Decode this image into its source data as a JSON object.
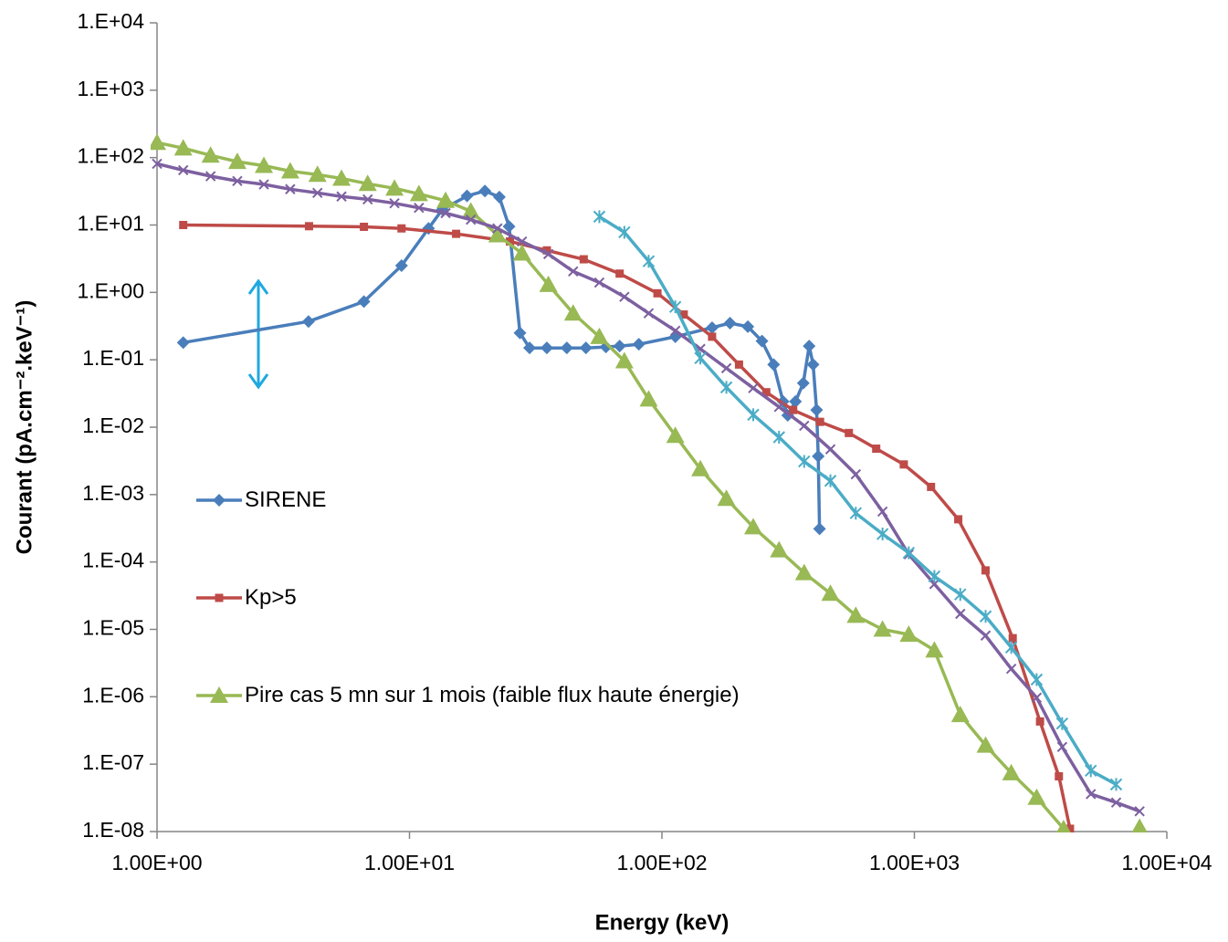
{
  "chart_data": {
    "type": "line",
    "x_label": "Energy (keV)",
    "y_label": "Courant (pA.cm⁻².keV⁻¹)",
    "xscale": "log",
    "yscale": "log",
    "xlim": [
      1,
      10000
    ],
    "ylim": [
      1e-08,
      10000
    ],
    "xticks": [
      {
        "value": 1,
        "label": "1.00E+00"
      },
      {
        "value": 10,
        "label": "1.00E+01"
      },
      {
        "value": 100,
        "label": "1.00E+02"
      },
      {
        "value": 1000,
        "label": "1.00E+03"
      },
      {
        "value": 10000,
        "label": "1.00E+04"
      }
    ],
    "yticks": [
      {
        "value": 1e-08,
        "label": "1.E-08"
      },
      {
        "value": 1e-07,
        "label": "1.E-07"
      },
      {
        "value": 1e-06,
        "label": "1.E-06"
      },
      {
        "value": 1e-05,
        "label": "1.E-05"
      },
      {
        "value": 0.0001,
        "label": "1.E-04"
      },
      {
        "value": 0.001,
        "label": "1.E-03"
      },
      {
        "value": 0.01,
        "label": "1.E-02"
      },
      {
        "value": 0.1,
        "label": "1.E-01"
      },
      {
        "value": 1,
        "label": "1.E+00"
      },
      {
        "value": 10,
        "label": "1.E+01"
      },
      {
        "value": 100,
        "label": "1.E+02"
      },
      {
        "value": 1000,
        "label": "1.E+03"
      },
      {
        "value": 10000,
        "label": "1.E+04"
      }
    ],
    "series": [
      {
        "name": "SIRENE",
        "color": "#4a7ebb",
        "marker": "diamond",
        "x": [
          1.27,
          3.98,
          6.6,
          9.3,
          11.9,
          13.5,
          16.9,
          19.9,
          22.7,
          24.8,
          27.4,
          29.9,
          35,
          42,
          50,
          60,
          68,
          81,
          113,
          158,
          186,
          219,
          249,
          277,
          302,
          315,
          338,
          363,
          383,
          397,
          410,
          416,
          421
        ],
        "values": [
          0.18,
          0.37,
          0.73,
          2.5,
          8.9,
          17,
          27,
          32,
          26,
          9.5,
          0.25,
          0.15,
          0.15,
          0.15,
          0.15,
          0.155,
          0.16,
          0.17,
          0.22,
          0.3,
          0.35,
          0.31,
          0.19,
          0.085,
          0.024,
          0.015,
          0.024,
          0.045,
          0.16,
          0.085,
          0.018,
          0.0037,
          0.00031
        ]
      },
      {
        "name": "Kp>5",
        "color": "#be4b48",
        "marker": "square",
        "x": [
          1.27,
          4,
          6.6,
          9.3,
          15.3,
          25,
          35,
          49,
          68,
          96,
          122,
          158,
          202,
          259,
          331,
          423,
          550,
          706,
          908,
          1164,
          1492,
          1914,
          2452,
          3146,
          3736,
          4134
        ],
        "values": [
          10,
          9.6,
          9.4,
          8.9,
          7.4,
          5.7,
          4.2,
          3.1,
          1.9,
          0.97,
          0.47,
          0.22,
          0.085,
          0.033,
          0.018,
          0.012,
          0.0082,
          0.0048,
          0.0028,
          0.0013,
          0.00043,
          7.5e-05,
          7.4e-06,
          4.3e-07,
          6.6e-08,
          1.1e-08
        ]
      },
      {
        "name": "Pire cas 5 mn sur 1 mois (faible flux haute énergie)",
        "color": "#98b954",
        "marker": "triangle",
        "x": [
          1,
          1.27,
          1.63,
          2.08,
          2.65,
          3.37,
          4.32,
          5.38,
          6.83,
          8.72,
          10.9,
          13.9,
          17.5,
          22.3,
          27.9,
          35.5,
          44.5,
          56.5,
          71,
          88.6,
          113,
          142,
          180,
          230,
          291,
          366,
          465,
          586,
          748,
          950,
          1200,
          1520,
          1915,
          2420,
          3050,
          3900,
          null,
          7800
        ],
        "values": [
          167,
          138,
          108,
          87,
          76,
          63,
          56,
          49,
          41,
          35,
          29,
          23,
          16,
          7.1,
          3.8,
          1.3,
          0.49,
          0.22,
          0.096,
          0.026,
          0.0075,
          0.0024,
          0.00087,
          0.00033,
          0.00015,
          6.9e-05,
          3.4e-05,
          1.6e-05,
          1e-05,
          8.4e-06,
          4.9e-06,
          5.4e-07,
          1.9e-07,
          7.4e-08,
          3.2e-08,
          1.1e-08,
          null,
          1.15e-08
        ]
      },
      {
        "color": "#7d60a0",
        "marker": "x",
        "x": [
          1,
          1.27,
          1.63,
          2.08,
          2.65,
          3.37,
          4.32,
          5.38,
          6.83,
          8.72,
          10.9,
          13.9,
          17.5,
          22.3,
          27.9,
          35.5,
          44.5,
          56.5,
          71,
          88.6,
          113,
          142,
          180,
          230,
          291,
          366,
          465,
          586,
          748,
          950,
          1200,
          1520,
          1915,
          2420,
          3050,
          3850,
          5000,
          6300,
          7800
        ],
        "values": [
          81,
          65,
          53,
          45,
          40,
          34,
          30,
          26.5,
          24,
          21,
          18,
          15,
          12,
          8.9,
          5.7,
          3.7,
          2.05,
          1.4,
          0.86,
          0.49,
          0.27,
          0.145,
          0.075,
          0.038,
          0.02,
          0.0105,
          0.0047,
          0.002,
          0.00056,
          0.00013,
          4.7e-05,
          1.7e-05,
          8.1e-06,
          2.6e-06,
          9.7e-07,
          1.8e-07,
          3.6e-08,
          2.7e-08,
          2e-08
        ]
      },
      {
        "color": "#4bacc6",
        "marker": "star",
        "x": [
          56.5,
          71,
          88.6,
          113,
          142,
          180,
          230,
          291,
          366,
          465,
          586,
          748,
          950,
          1200,
          1520,
          1915,
          2420,
          3050,
          3850,
          5000,
          6300
        ],
        "values": [
          13.3,
          7.8,
          2.9,
          0.61,
          0.106,
          0.039,
          0.0153,
          0.0071,
          0.0031,
          0.0016,
          0.00053,
          0.00026,
          0.000137,
          6.1e-05,
          3.3e-05,
          1.56e-05,
          5.4e-06,
          1.8e-06,
          4e-07,
          8e-08,
          5e-08
        ]
      }
    ]
  }
}
